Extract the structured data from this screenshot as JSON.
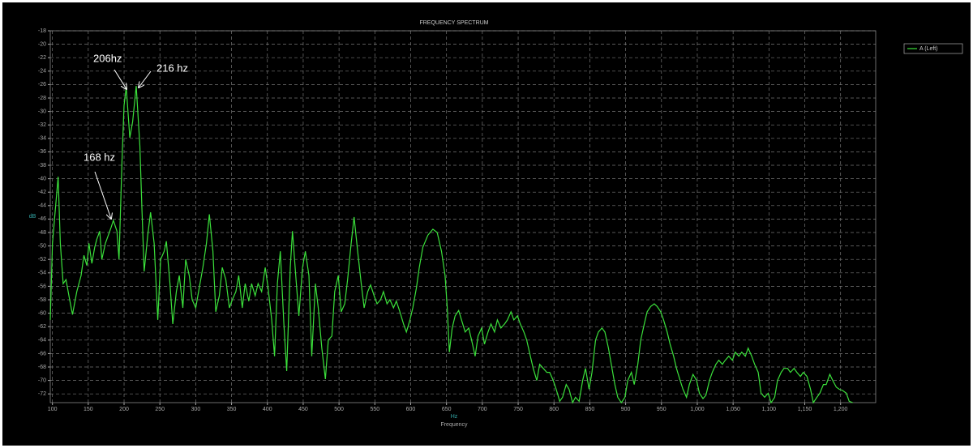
{
  "chart_data": {
    "type": "line",
    "title": "FREQUENCY SPECTRUM",
    "xlabel": "Frequency",
    "xunit": "Hz",
    "ylabel": "dB",
    "x": [
      97,
      100,
      108,
      111,
      115,
      119,
      124,
      128,
      134,
      140,
      144,
      148,
      151,
      155,
      159,
      162,
      166,
      169,
      174,
      178,
      182,
      185,
      190,
      193,
      197,
      200,
      203,
      208,
      212,
      217,
      222,
      225,
      228,
      233,
      237,
      242,
      247,
      251,
      256,
      259,
      264,
      268,
      273,
      277,
      282,
      286,
      291,
      295,
      300,
      304,
      310,
      315,
      319,
      324,
      328,
      333,
      337,
      342,
      347,
      351,
      356,
      360,
      365,
      369,
      374,
      378,
      383,
      387,
      392,
      397,
      401,
      406,
      410,
      414,
      418,
      423,
      427,
      432,
      435,
      440,
      444,
      449,
      453,
      458,
      462,
      467,
      471,
      476,
      481,
      485,
      490,
      494,
      499,
      503,
      508,
      512,
      517,
      521,
      526,
      531,
      535,
      540,
      544,
      549,
      553,
      558,
      562,
      567,
      571,
      576,
      580,
      585,
      590,
      594,
      599,
      603,
      608,
      612,
      617,
      624,
      631,
      637,
      643,
      648,
      651,
      654,
      658,
      662,
      667,
      671,
      676,
      681,
      685,
      690,
      694,
      699,
      703,
      708,
      712,
      717,
      721,
      726,
      731,
      735,
      740,
      744,
      749,
      753,
      758,
      762,
      767,
      771,
      776,
      780,
      785,
      790,
      794,
      799,
      803,
      808,
      812,
      817,
      821,
      826,
      830,
      835,
      840,
      844,
      849,
      853,
      858,
      862,
      867,
      871,
      876,
      880,
      885,
      889,
      894,
      899,
      903,
      908,
      912,
      917,
      921,
      926,
      930,
      935,
      940,
      944,
      949,
      953,
      958,
      962,
      967,
      971,
      976,
      980,
      985,
      989,
      994,
      999,
      1003,
      1008,
      1012,
      1017,
      1021,
      1026,
      1030,
      1035,
      1039,
      1044,
      1049,
      1053,
      1058,
      1062,
      1067,
      1071,
      1076,
      1080,
      1085,
      1089,
      1094,
      1099,
      1103,
      1108,
      1112,
      1117,
      1121,
      1126,
      1130,
      1135,
      1139,
      1144,
      1148,
      1153,
      1158,
      1162,
      1167,
      1171,
      1176,
      1180,
      1185,
      1189,
      1194,
      1198,
      1203,
      1208,
      1212,
      1217
    ],
    "series": [
      {
        "name": "A (Left)",
        "color": "#3be03b",
        "values": [
          -61,
          -49.6,
          -39.7,
          -49.6,
          -55.6,
          -55,
          -58,
          -60.2,
          -56.8,
          -54.4,
          -51.4,
          -52.9,
          -49.6,
          -52.6,
          -50.2,
          -49,
          -47.8,
          -52,
          -49.6,
          -48.4,
          -47.2,
          -46.2,
          -47.8,
          -52,
          -37.5,
          -29.1,
          -26.4,
          -33.9,
          -31.5,
          -26.2,
          -35.1,
          -44.7,
          -53.8,
          -48.4,
          -45,
          -49.6,
          -61,
          -52,
          -50.8,
          -49.3,
          -55.6,
          -61.6,
          -56.8,
          -54.4,
          -59.2,
          -52,
          -54.4,
          -58,
          -59.2,
          -56.8,
          -53.2,
          -49.6,
          -45.3,
          -50.8,
          -59.8,
          -57.4,
          -53.2,
          -55,
          -59.2,
          -58,
          -56.8,
          -54.4,
          -59.2,
          -55.6,
          -58.2,
          -55.6,
          -57.4,
          -55.6,
          -56.8,
          -53.2,
          -56.2,
          -61,
          -66.4,
          -55.6,
          -50.8,
          -61.6,
          -68.6,
          -53.2,
          -47.8,
          -55,
          -60.4,
          -53.2,
          -50.8,
          -54.4,
          -66.4,
          -55.6,
          -59.2,
          -65.2,
          -69.8,
          -64,
          -63.4,
          -56.8,
          -54.4,
          -59.8,
          -58.6,
          -55,
          -49.6,
          -45.7,
          -50.8,
          -55.6,
          -59.2,
          -56.8,
          -55.8,
          -57.4,
          -58.6,
          -58,
          -56.8,
          -58.6,
          -58,
          -59.2,
          -58.2,
          -59.8,
          -61.6,
          -62.8,
          -61,
          -59.2,
          -56.2,
          -53.2,
          -50.2,
          -48.4,
          -47.5,
          -48,
          -50.8,
          -54.4,
          -59.2,
          -65.8,
          -62.2,
          -60.4,
          -59.6,
          -61,
          -62.8,
          -62.2,
          -64,
          -66.4,
          -63.4,
          -62.2,
          -64.6,
          -62.8,
          -61.6,
          -62.8,
          -61,
          -62.2,
          -61.6,
          -61,
          -59.8,
          -61,
          -60.4,
          -61.6,
          -62.8,
          -64,
          -66.4,
          -68.2,
          -70,
          -67.6,
          -68.2,
          -68.8,
          -68.8,
          -70,
          -71.3,
          -73.1,
          -72.5,
          -70.6,
          -71.3,
          -73.3,
          -72.5,
          -73.1,
          -70,
          -68.2,
          -71.3,
          -68.8,
          -64,
          -62.8,
          -62.2,
          -62.8,
          -65.2,
          -67.6,
          -70.6,
          -72.5,
          -73.3,
          -72.5,
          -70,
          -68.8,
          -70.6,
          -67.6,
          -64,
          -61.6,
          -59.8,
          -59,
          -58.6,
          -59,
          -59.8,
          -61,
          -62.8,
          -64.6,
          -66.4,
          -68.2,
          -70,
          -71.3,
          -72.5,
          -70.6,
          -69.1,
          -70,
          -71.9,
          -72.7,
          -72.2,
          -70,
          -68.8,
          -67.6,
          -67,
          -67.6,
          -67,
          -66.4,
          -67,
          -65.8,
          -66.4,
          -65.8,
          -66.4,
          -65.2,
          -66.4,
          -67.6,
          -68.8,
          -71.9,
          -72.5,
          -71.9,
          -73.3,
          -72.5,
          -70,
          -68.8,
          -68.2,
          -68.2,
          -68.8,
          -68.2,
          -68.8,
          -69.4,
          -68.8,
          -69.4,
          -71.3,
          -73.3,
          -72.5,
          -71.9,
          -70.6,
          -70.6,
          -69.1,
          -70,
          -71,
          -71.3,
          -71.5,
          -71.9,
          -73.1,
          -73.3
        ]
      }
    ],
    "xlim": [
      97,
      1249
    ],
    "ylim": [
      -73.3,
      -18
    ],
    "xticks": [
      100,
      150,
      200,
      250,
      300,
      350,
      400,
      450,
      500,
      550,
      600,
      650,
      700,
      750,
      800,
      850,
      900,
      950,
      {
        "value": 1000,
        "label": "1,000"
      },
      {
        "value": 1050,
        "label": "1,050"
      },
      {
        "value": 1100,
        "label": "1,100"
      },
      {
        "value": 1150,
        "label": "1,150"
      },
      {
        "value": 1200,
        "label": "1,200"
      }
    ],
    "yticks": [
      -18,
      -20,
      -22,
      -24,
      -26,
      -28,
      -30,
      -32,
      -34,
      -36,
      -38,
      -40,
      -42,
      -44,
      -46,
      -48,
      -50,
      -52,
      -54,
      -56,
      -58,
      -60,
      -62,
      -64,
      -66,
      -68,
      -70,
      -72
    ],
    "grid": true,
    "legend": "top-right",
    "annotations": [
      {
        "text": "206hz"
      },
      {
        "text": "216 hz"
      },
      {
        "text": "168 hz"
      }
    ]
  }
}
